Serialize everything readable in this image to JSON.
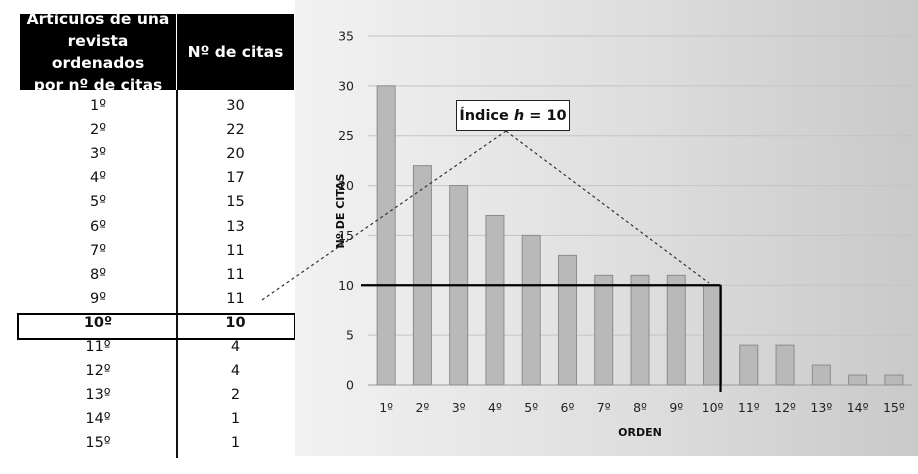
{
  "table": {
    "header_col1": "Artículos de una\nrevista ordenados\npor nº de citas",
    "header_col2": "Nº de citas",
    "rows": [
      {
        "rank": "1º",
        "citations": "30"
      },
      {
        "rank": "2º",
        "citations": "22"
      },
      {
        "rank": "3º",
        "citations": "20"
      },
      {
        "rank": "4º",
        "citations": "17"
      },
      {
        "rank": "5º",
        "citations": "15"
      },
      {
        "rank": "6º",
        "citations": "13"
      },
      {
        "rank": "7º",
        "citations": "11"
      },
      {
        "rank": "8º",
        "citations": "11"
      },
      {
        "rank": "9º",
        "citations": "11"
      },
      {
        "rank": "10º",
        "citations": "10"
      },
      {
        "rank": "11º",
        "citations": "4"
      },
      {
        "rank": "12º",
        "citations": "4"
      },
      {
        "rank": "13º",
        "citations": "2"
      },
      {
        "rank": "14º",
        "citations": "1"
      },
      {
        "rank": "15º",
        "citations": "1"
      }
    ],
    "highlight_index": 9
  },
  "annotation": {
    "prefix": "Índice ",
    "variable": "h",
    "suffix": " = 10"
  },
  "chart_data": {
    "type": "bar",
    "categories": [
      "1º",
      "2º",
      "3º",
      "4º",
      "5º",
      "6º",
      "7º",
      "8º",
      "9º",
      "10º",
      "11º",
      "12º",
      "13º",
      "14º",
      "15º"
    ],
    "values": [
      30,
      22,
      20,
      17,
      15,
      13,
      11,
      11,
      11,
      10,
      4,
      4,
      2,
      1,
      1
    ],
    "xlabel": "ORDEN",
    "ylabel": "Nº DE CITAS",
    "ylim": [
      0,
      35
    ],
    "yticks": [
      0,
      5,
      10,
      15,
      20,
      25,
      30,
      35
    ],
    "grid": true,
    "h_index": 10,
    "bar_color": "#b9b9b9",
    "bar_edge_color": "#8c8c8c"
  }
}
